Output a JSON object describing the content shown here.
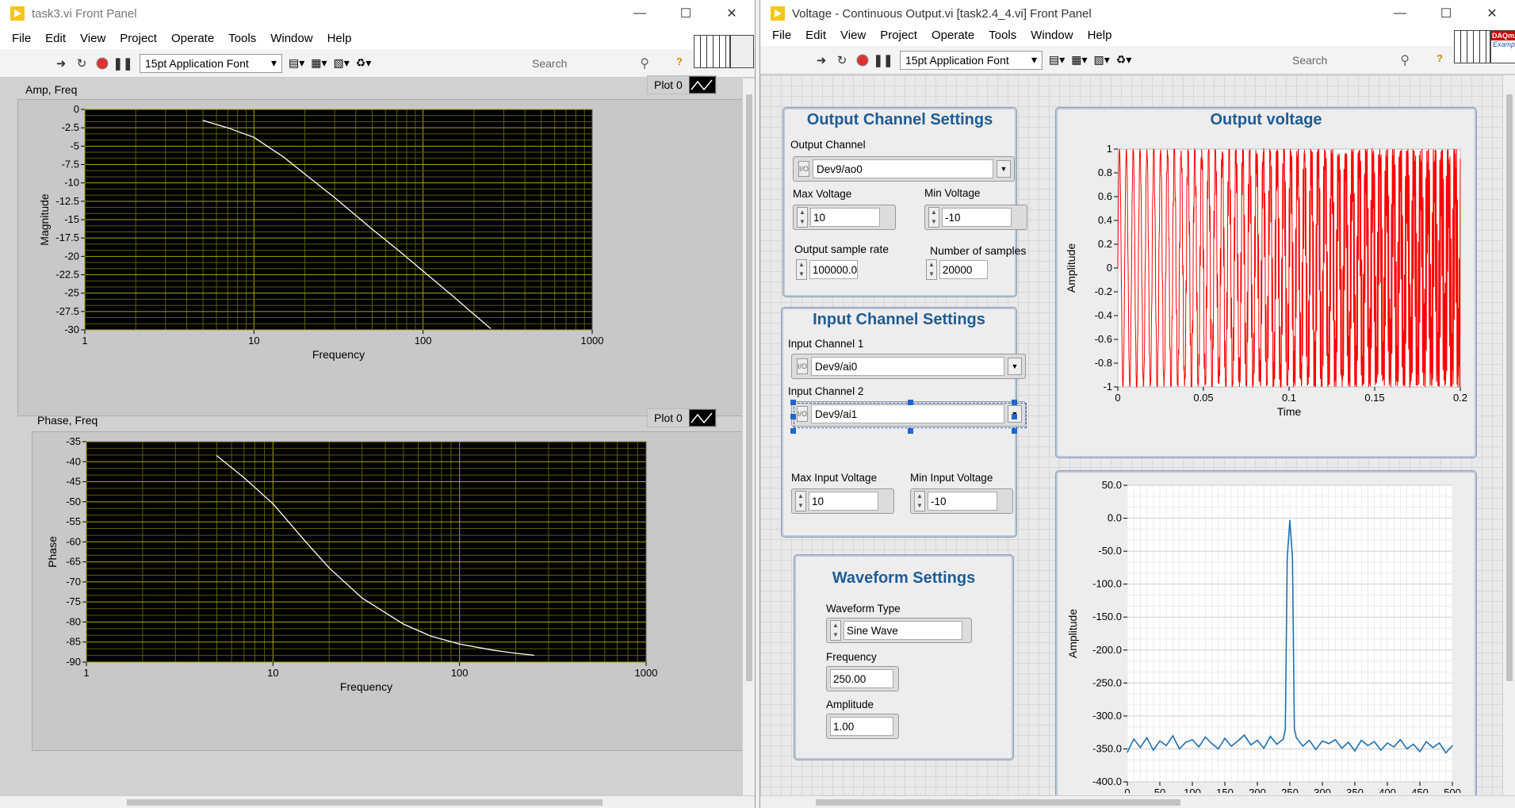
{
  "left_window": {
    "title": "task3.vi Front Panel",
    "menu": [
      "File",
      "Edit",
      "View",
      "Project",
      "Operate",
      "Tools",
      "Window",
      "Help"
    ],
    "font_selector": "15pt Application Font",
    "search_placeholder": "Search"
  },
  "right_window": {
    "title": "Voltage - Continuous Output.vi [task2.4_4.vi] Front Panel",
    "menu": [
      "File",
      "Edit",
      "View",
      "Project",
      "Operate",
      "Tools",
      "Window",
      "Help"
    ],
    "font_selector": "15pt Application Font",
    "search_placeholder": "Search",
    "badge_top": "DAQmx",
    "badge_bottom": "Example"
  },
  "output_settings": {
    "title": "Output Channel Settings",
    "channel_label": "Output Channel",
    "channel_value": "Dev9/ao0",
    "max_label": "Max Voltage",
    "max_value": "10",
    "min_label": "Min Voltage",
    "min_value": "-10",
    "rate_label": "Output sample rate",
    "rate_value": "100000.0",
    "samples_label": "Number of samples",
    "samples_value": "20000"
  },
  "input_settings": {
    "title": "Input Channel Settings",
    "ch1_label": "Input Channel 1",
    "ch1_value": "Dev9/ai0",
    "ch2_label": "Input Channel 2",
    "ch2_value": "Dev9/ai1",
    "max_label": "Max Input Voltage",
    "max_value": "10",
    "min_label": "Min Input Voltage",
    "min_value": "-10"
  },
  "waveform_settings": {
    "title": "Waveform Settings",
    "type_label": "Waveform Type",
    "type_value": "Sine Wave",
    "freq_label": "Frequency",
    "freq_value": "250.00",
    "amp_label": "Amplitude",
    "amp_value": "1.00"
  },
  "colors": {
    "accent_title": "#1e5c95",
    "plot_bg": "#000000",
    "grid_yellow": "#8a8a00",
    "trace_white": "#ffffff",
    "trace_red": "#ff0000",
    "trace_blue": "#1f6fb0"
  },
  "chart_data": [
    {
      "type": "line",
      "title": "Amp, Freq",
      "legend": "Plot 0",
      "xlabel": "Frequency",
      "ylabel": "Magnitude",
      "xscale": "log",
      "xlim": [
        1,
        1000
      ],
      "ylim": [
        -30,
        0
      ],
      "xticks": [
        "1",
        "10",
        "100",
        "1000"
      ],
      "yticks": [
        "0",
        "-2.5",
        "-5",
        "-7.5",
        "-10",
        "-12.5",
        "-15",
        "-17.5",
        "-20",
        "-22.5",
        "-25",
        "-27.5",
        "-30"
      ],
      "x": [
        5,
        7,
        10,
        15,
        20,
        30,
        50,
        70,
        100,
        150,
        200,
        250
      ],
      "y": [
        -1.5,
        -2.5,
        -3.8,
        -6.5,
        -8.8,
        -12.0,
        -16.3,
        -19.0,
        -22.0,
        -25.4,
        -27.9,
        -29.8
      ],
      "grid": true
    },
    {
      "type": "line",
      "title": "Phase, Freq",
      "legend": "Plot 0",
      "xlabel": "Frequency",
      "ylabel": "Phase",
      "xscale": "log",
      "xlim": [
        1,
        1000
      ],
      "ylim": [
        -90,
        -35
      ],
      "xticks": [
        "1",
        "10",
        "100",
        "1000"
      ],
      "yticks": [
        "-35",
        "-40",
        "-45",
        "-50",
        "-55",
        "-60",
        "-65",
        "-70",
        "-75",
        "-80",
        "-85",
        "-90"
      ],
      "x": [
        5,
        7,
        10,
        15,
        20,
        30,
        50,
        70,
        100,
        150,
        200,
        250
      ],
      "y": [
        -38.5,
        -44.0,
        -50.5,
        -60.0,
        -66.5,
        -74.0,
        -80.5,
        -83.5,
        -85.5,
        -87.0,
        -87.8,
        -88.3
      ],
      "grid": true
    },
    {
      "type": "line",
      "title": "Output voltage",
      "xlabel": "Time",
      "ylabel": "Amplitude",
      "xlim": [
        0,
        0.2
      ],
      "ylim": [
        -1,
        1
      ],
      "xticks": [
        "0",
        "0.05",
        "0.1",
        "0.15",
        "0.2"
      ],
      "yticks": [
        "1",
        "0.8",
        "0.6",
        "0.4",
        "0.2",
        "0",
        "-0.2",
        "-0.4",
        "-0.6",
        "-0.8",
        "-1"
      ],
      "signal": {
        "shape": "sine",
        "frequency": 250,
        "amplitude": 1
      },
      "grid": false
    },
    {
      "type": "line",
      "xlabel": "",
      "ylabel": "Amplitude",
      "xlim": [
        0,
        500
      ],
      "ylim": [
        -400,
        50
      ],
      "xticks": [
        "0",
        "50",
        "100",
        "150",
        "200",
        "250",
        "300",
        "350",
        "400",
        "450",
        "500"
      ],
      "yticks": [
        "50.0",
        "0.0",
        "-50.0",
        "-100.0",
        "-150.0",
        "-200.0",
        "-250.0",
        "-300.0",
        "-350.0",
        "-400.0"
      ],
      "x": [
        0,
        10,
        20,
        30,
        40,
        50,
        60,
        70,
        80,
        90,
        100,
        110,
        120,
        130,
        140,
        150,
        160,
        170,
        180,
        190,
        200,
        210,
        220,
        230,
        240,
        243,
        246,
        250,
        254,
        257,
        260,
        270,
        280,
        290,
        300,
        310,
        320,
        330,
        340,
        350,
        360,
        370,
        380,
        390,
        400,
        410,
        420,
        430,
        440,
        450,
        460,
        470,
        480,
        490,
        500
      ],
      "y": [
        -355,
        -335,
        -348,
        -333,
        -352,
        -338,
        -345,
        -330,
        -350,
        -340,
        -336,
        -347,
        -332,
        -342,
        -350,
        -334,
        -346,
        -338,
        -329,
        -344,
        -337,
        -349,
        -331,
        -343,
        -335,
        -320,
        -60,
        -3,
        -60,
        -320,
        -333,
        -346,
        -337,
        -351,
        -338,
        -342,
        -336,
        -349,
        -340,
        -353,
        -337,
        -345,
        -339,
        -352,
        -341,
        -347,
        -336,
        -350,
        -343,
        -354,
        -339,
        -348,
        -341,
        -356,
        -345
      ],
      "grid": true
    }
  ]
}
